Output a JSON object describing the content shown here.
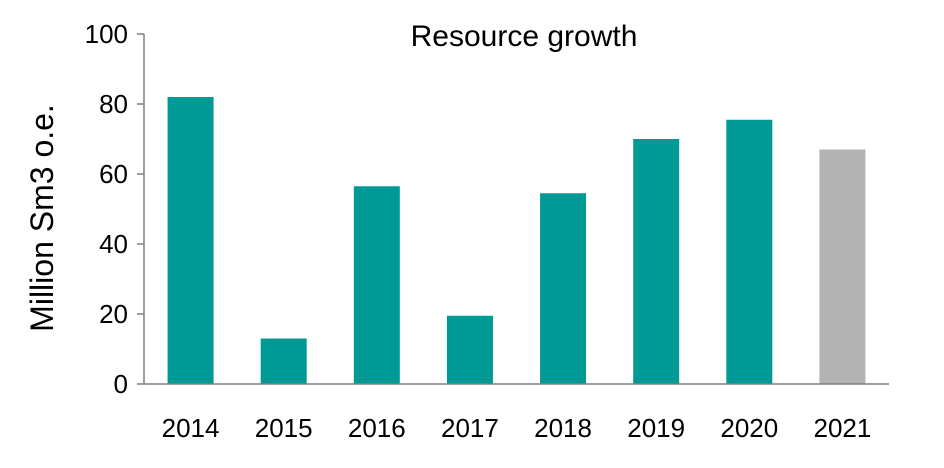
{
  "chart_data": {
    "type": "bar",
    "title": "Resource growth",
    "xlabel": "",
    "ylabel": "Million Sm3 o.e.",
    "categories": [
      "2014",
      "2015",
      "2016",
      "2017",
      "2018",
      "2019",
      "2020",
      "2021"
    ],
    "values": [
      82,
      13,
      56.5,
      19.5,
      54.5,
      70,
      75.5,
      67
    ],
    "bar_colors": [
      "#009a96",
      "#009a96",
      "#009a96",
      "#009a96",
      "#009a96",
      "#009a96",
      "#009a96",
      "#b3b3b3"
    ],
    "ylim": [
      0,
      100
    ],
    "yticks": [
      0,
      20,
      40,
      60,
      80,
      100
    ],
    "grid": false,
    "legend": "none"
  }
}
